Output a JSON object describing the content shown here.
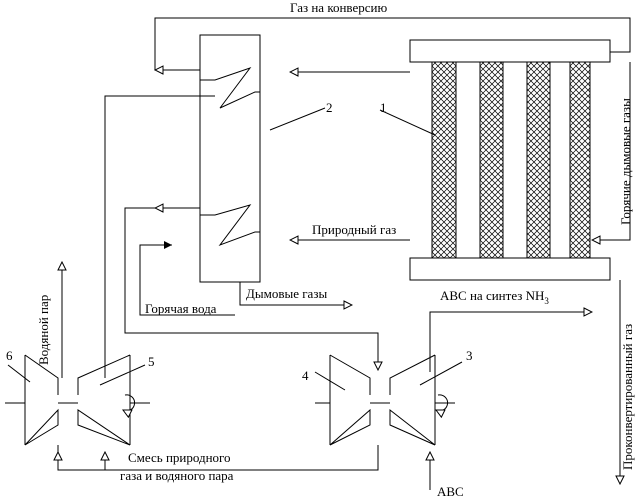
{
  "labels": {
    "gas_conversion": "Газ на конверсию",
    "hot_flue": "Горячие дымовые газы",
    "n1": "1",
    "n2": "2",
    "n3": "3",
    "n4": "4",
    "n5": "5",
    "n6": "6",
    "natural_gas": "Природный газ",
    "flue_gases": "Дымовые газы",
    "hot_water": "Горячая вода",
    "abc_synth": "АВС на синтез NH",
    "abc_synth_sub": "3",
    "steam": "Водяной пар",
    "mix_line1": "Смесь природного",
    "mix_line2": "газа и водяного пара",
    "converted": "Проконвертированный газ",
    "abc": "АВС"
  }
}
